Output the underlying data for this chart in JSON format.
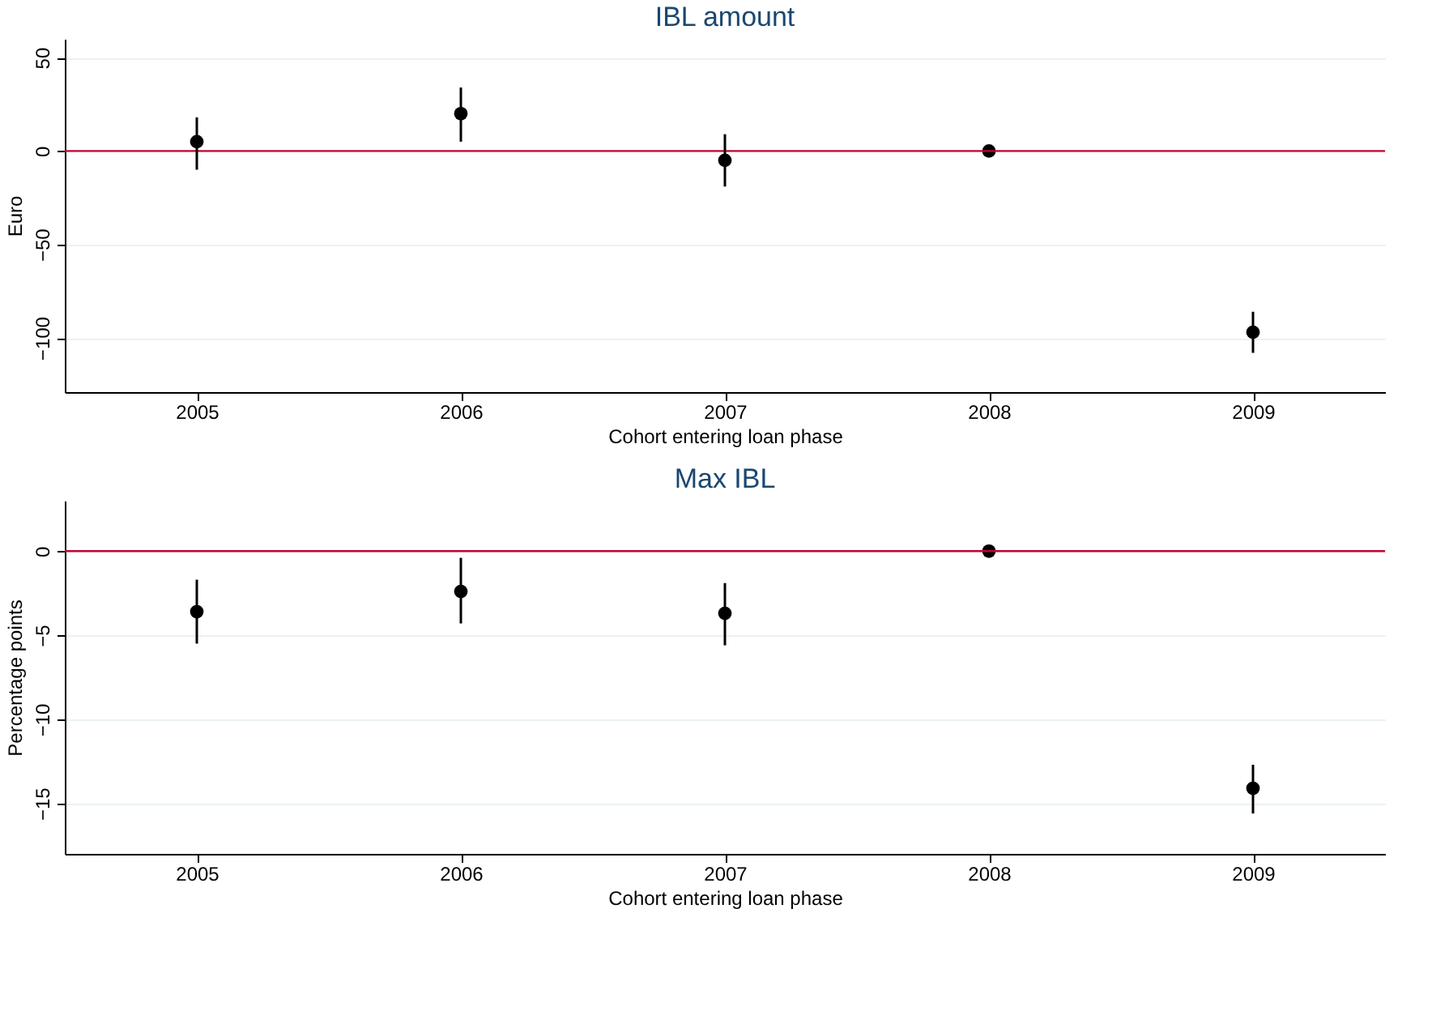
{
  "chart_data": [
    {
      "type": "scatter",
      "title": "IBL amount",
      "xlabel": "Cohort entering loan phase",
      "ylabel": "Euro",
      "categories": [
        "2005",
        "2006",
        "2007",
        "2008",
        "2009"
      ],
      "color": "#000000",
      "marker": "circle",
      "grid": "y",
      "values": [
        5,
        20,
        -5,
        0,
        -97
      ],
      "errors": [
        [
          -10,
          18
        ],
        [
          5,
          34
        ],
        [
          -19,
          9
        ],
        null,
        [
          -108,
          -86
        ]
      ],
      "ylim": [
        -129,
        60
      ],
      "yticks": [
        -100,
        -50,
        0,
        50
      ],
      "ref_lines": [
        {
          "axis": "y",
          "value": 0,
          "color": "#c10534"
        }
      ]
    },
    {
      "type": "scatter",
      "title": "Max IBL",
      "xlabel": "Cohort entering loan phase",
      "ylabel": "Percentage points",
      "categories": [
        "2005",
        "2006",
        "2007",
        "2008",
        "2009"
      ],
      "color": "#000000",
      "marker": "circle",
      "grid": "y",
      "values": [
        -3.6,
        -2.4,
        -3.7,
        0,
        -14.1
      ],
      "errors": [
        [
          -5.5,
          -1.7
        ],
        [
          -4.3,
          -0.4
        ],
        [
          -5.6,
          -1.9
        ],
        null,
        [
          -15.6,
          -12.7
        ]
      ],
      "ylim": [
        -18,
        3
      ],
      "yticks": [
        -15,
        -10,
        -5,
        0
      ],
      "ref_lines": [
        {
          "axis": "y",
          "value": 0,
          "color": "#c10534"
        }
      ]
    }
  ]
}
